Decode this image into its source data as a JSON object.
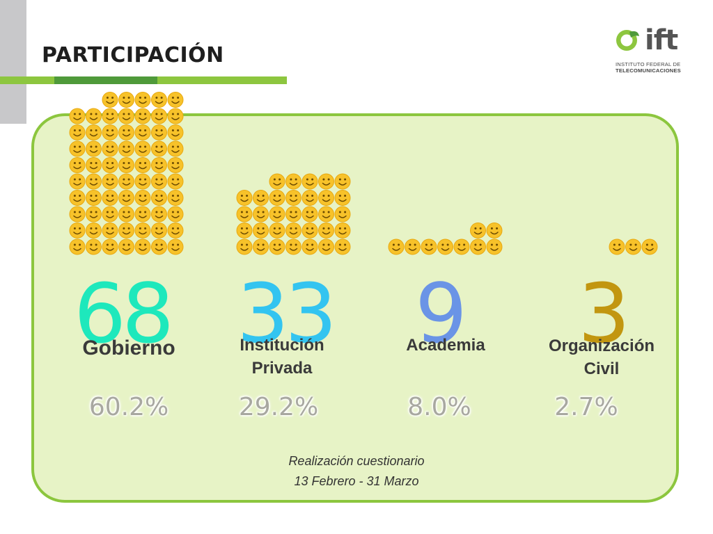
{
  "slide": {
    "title": "PARTICIPACIÓN",
    "logo": {
      "name": "ift",
      "subtitle_line1": "INSTITUTO FEDERAL DE",
      "subtitle_line2": "TELECOMUNICACIONES"
    },
    "categories": [
      {
        "count": "68",
        "label": "Gobierno",
        "percent": "60.2%",
        "color": "#1ee8bc",
        "smileys": 68
      },
      {
        "count": "33",
        "label_line1": "Institución",
        "label_line2": "Privada",
        "percent": "29.2%",
        "color": "#33c4f0",
        "smileys": 33
      },
      {
        "count": "9",
        "label": "Academia",
        "percent": "8.0%",
        "color": "#6a94e6",
        "smileys": 9
      },
      {
        "count": "3",
        "label_line1": "Organización",
        "label_line2": "Civil",
        "percent": "2.7%",
        "color": "#c29610",
        "smileys": 3
      }
    ],
    "footer": {
      "line1": "Realización cuestionario",
      "line2": "13 Febrero - 31 Marzo"
    },
    "colors": {
      "smiley": "#f7c22a",
      "panel_border": "#8cc63e",
      "panel_fill": "#e7f3c6"
    }
  }
}
